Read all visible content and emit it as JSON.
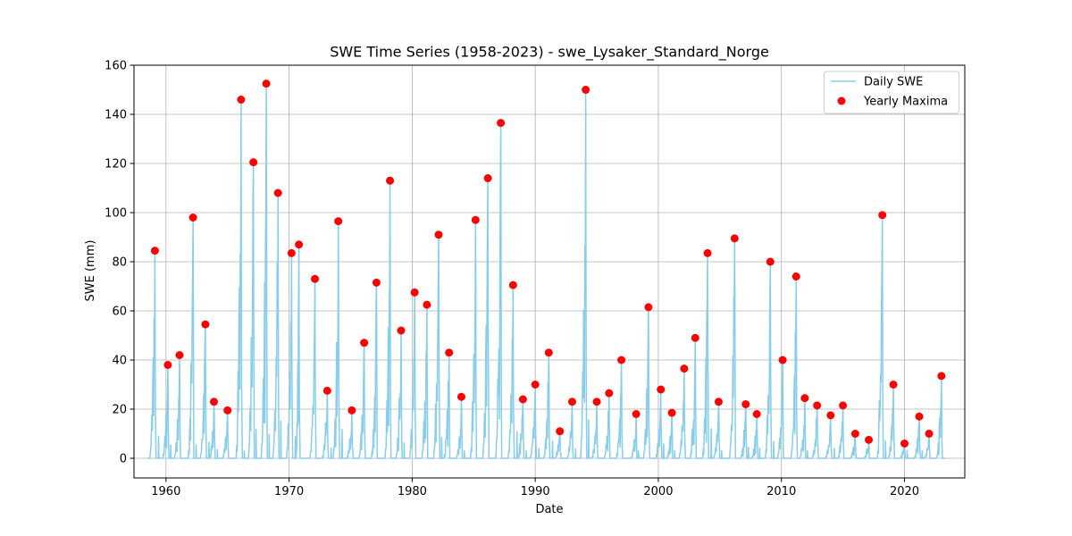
{
  "chart_data": {
    "type": "line",
    "title": "SWE Time Series (1958-2023) - swe_Lysaker_Standard_Norge",
    "xlabel": "Date",
    "ylabel": "SWE (mm)",
    "xlim": [
      1957.4,
      2024.9
    ],
    "ylim": [
      -8,
      160
    ],
    "xticks": [
      1960,
      1970,
      1980,
      1990,
      2000,
      2010,
      2020
    ],
    "yticks": [
      0,
      20,
      40,
      60,
      80,
      100,
      120,
      140,
      160
    ],
    "grid": true,
    "legend_position": "top-right",
    "series": [
      {
        "name": "Daily SWE",
        "kind": "line",
        "color": "#87ceeb",
        "peaks": [
          {
            "x": 1959.1,
            "y": 84.5
          },
          {
            "x": 1960.15,
            "y": 38
          },
          {
            "x": 1961.1,
            "y": 42
          },
          {
            "x": 1962.2,
            "y": 98
          },
          {
            "x": 1963.2,
            "y": 54.5
          },
          {
            "x": 1963.9,
            "y": 23
          },
          {
            "x": 1965.0,
            "y": 19.5
          },
          {
            "x": 1966.1,
            "y": 146
          },
          {
            "x": 1967.1,
            "y": 120.5
          },
          {
            "x": 1968.15,
            "y": 152.5
          },
          {
            "x": 1969.1,
            "y": 108
          },
          {
            "x": 1970.2,
            "y": 83.5
          },
          {
            "x": 1970.8,
            "y": 87
          },
          {
            "x": 1972.1,
            "y": 73
          },
          {
            "x": 1973.1,
            "y": 27.5
          },
          {
            "x": 1974.0,
            "y": 96.5
          },
          {
            "x": 1975.1,
            "y": 19.5
          },
          {
            "x": 1976.1,
            "y": 47
          },
          {
            "x": 1977.1,
            "y": 71.5
          },
          {
            "x": 1978.2,
            "y": 113
          },
          {
            "x": 1979.1,
            "y": 52
          },
          {
            "x": 1980.2,
            "y": 67.5
          },
          {
            "x": 1981.2,
            "y": 62.5
          },
          {
            "x": 1982.15,
            "y": 91
          },
          {
            "x": 1983.0,
            "y": 43
          },
          {
            "x": 1984.0,
            "y": 25
          },
          {
            "x": 1985.15,
            "y": 97
          },
          {
            "x": 1986.15,
            "y": 114
          },
          {
            "x": 1987.2,
            "y": 136.5
          },
          {
            "x": 1988.2,
            "y": 70.5
          },
          {
            "x": 1989.0,
            "y": 24
          },
          {
            "x": 1990.0,
            "y": 30
          },
          {
            "x": 1991.1,
            "y": 43
          },
          {
            "x": 1992.0,
            "y": 11
          },
          {
            "x": 1993.0,
            "y": 23
          },
          {
            "x": 1994.1,
            "y": 150
          },
          {
            "x": 1995.0,
            "y": 23
          },
          {
            "x": 1996.0,
            "y": 26.5
          },
          {
            "x": 1997.0,
            "y": 40
          },
          {
            "x": 1998.2,
            "y": 18
          },
          {
            "x": 1999.2,
            "y": 61.5
          },
          {
            "x": 2000.2,
            "y": 28
          },
          {
            "x": 2001.1,
            "y": 18.5
          },
          {
            "x": 2002.1,
            "y": 36.5
          },
          {
            "x": 2003.0,
            "y": 49
          },
          {
            "x": 2004.0,
            "y": 83.5
          },
          {
            "x": 2004.9,
            "y": 23
          },
          {
            "x": 2006.2,
            "y": 89.5
          },
          {
            "x": 2007.1,
            "y": 22
          },
          {
            "x": 2008.0,
            "y": 18
          },
          {
            "x": 2009.1,
            "y": 80
          },
          {
            "x": 2010.1,
            "y": 40
          },
          {
            "x": 2011.2,
            "y": 74
          },
          {
            "x": 2011.9,
            "y": 24.5
          },
          {
            "x": 2012.9,
            "y": 21.5
          },
          {
            "x": 2014.0,
            "y": 17.5
          },
          {
            "x": 2015.0,
            "y": 21.5
          },
          {
            "x": 2016.0,
            "y": 10
          },
          {
            "x": 2017.1,
            "y": 7.5
          },
          {
            "x": 2018.2,
            "y": 99
          },
          {
            "x": 2019.1,
            "y": 30
          },
          {
            "x": 2020.0,
            "y": 6
          },
          {
            "x": 2021.2,
            "y": 17
          },
          {
            "x": 2022.0,
            "y": 10
          },
          {
            "x": 2023.0,
            "y": 33.5
          }
        ],
        "range": [
          1958.5,
          2023.3
        ]
      },
      {
        "name": "Yearly Maxima",
        "kind": "scatter",
        "color": "#ff0000",
        "points": [
          {
            "x": 1959.1,
            "y": 84.5
          },
          {
            "x": 1960.15,
            "y": 38
          },
          {
            "x": 1961.1,
            "y": 42
          },
          {
            "x": 1962.2,
            "y": 98
          },
          {
            "x": 1963.2,
            "y": 54.5
          },
          {
            "x": 1963.9,
            "y": 23
          },
          {
            "x": 1965.0,
            "y": 19.5
          },
          {
            "x": 1966.1,
            "y": 146
          },
          {
            "x": 1967.1,
            "y": 120.5
          },
          {
            "x": 1968.15,
            "y": 152.5
          },
          {
            "x": 1969.1,
            "y": 108
          },
          {
            "x": 1970.2,
            "y": 83.5
          },
          {
            "x": 1970.8,
            "y": 87
          },
          {
            "x": 1972.1,
            "y": 73
          },
          {
            "x": 1973.1,
            "y": 27.5
          },
          {
            "x": 1974.0,
            "y": 96.5
          },
          {
            "x": 1975.1,
            "y": 19.5
          },
          {
            "x": 1976.1,
            "y": 47
          },
          {
            "x": 1977.1,
            "y": 71.5
          },
          {
            "x": 1978.2,
            "y": 113
          },
          {
            "x": 1979.1,
            "y": 52
          },
          {
            "x": 1980.2,
            "y": 67.5
          },
          {
            "x": 1981.2,
            "y": 62.5
          },
          {
            "x": 1982.15,
            "y": 91
          },
          {
            "x": 1983.0,
            "y": 43
          },
          {
            "x": 1984.0,
            "y": 25
          },
          {
            "x": 1985.15,
            "y": 97
          },
          {
            "x": 1986.15,
            "y": 114
          },
          {
            "x": 1987.2,
            "y": 136.5
          },
          {
            "x": 1988.2,
            "y": 70.5
          },
          {
            "x": 1989.0,
            "y": 24
          },
          {
            "x": 1990.0,
            "y": 30
          },
          {
            "x": 1991.1,
            "y": 43
          },
          {
            "x": 1992.0,
            "y": 11
          },
          {
            "x": 1993.0,
            "y": 23
          },
          {
            "x": 1994.1,
            "y": 150
          },
          {
            "x": 1995.0,
            "y": 23
          },
          {
            "x": 1996.0,
            "y": 26.5
          },
          {
            "x": 1997.0,
            "y": 40
          },
          {
            "x": 1998.2,
            "y": 18
          },
          {
            "x": 1999.2,
            "y": 61.5
          },
          {
            "x": 2000.2,
            "y": 28
          },
          {
            "x": 2001.1,
            "y": 18.5
          },
          {
            "x": 2002.1,
            "y": 36.5
          },
          {
            "x": 2003.0,
            "y": 49
          },
          {
            "x": 2004.0,
            "y": 83.5
          },
          {
            "x": 2004.9,
            "y": 23
          },
          {
            "x": 2006.2,
            "y": 89.5
          },
          {
            "x": 2007.1,
            "y": 22
          },
          {
            "x": 2008.0,
            "y": 18
          },
          {
            "x": 2009.1,
            "y": 80
          },
          {
            "x": 2010.1,
            "y": 40
          },
          {
            "x": 2011.2,
            "y": 74
          },
          {
            "x": 2011.9,
            "y": 24.5
          },
          {
            "x": 2012.9,
            "y": 21.5
          },
          {
            "x": 2014.0,
            "y": 17.5
          },
          {
            "x": 2015.0,
            "y": 21.5
          },
          {
            "x": 2016.0,
            "y": 10
          },
          {
            "x": 2017.1,
            "y": 7.5
          },
          {
            "x": 2018.2,
            "y": 99
          },
          {
            "x": 2019.1,
            "y": 30
          },
          {
            "x": 2020.0,
            "y": 6
          },
          {
            "x": 2021.2,
            "y": 17
          },
          {
            "x": 2022.0,
            "y": 10
          },
          {
            "x": 2023.0,
            "y": 33.5
          }
        ]
      }
    ]
  }
}
